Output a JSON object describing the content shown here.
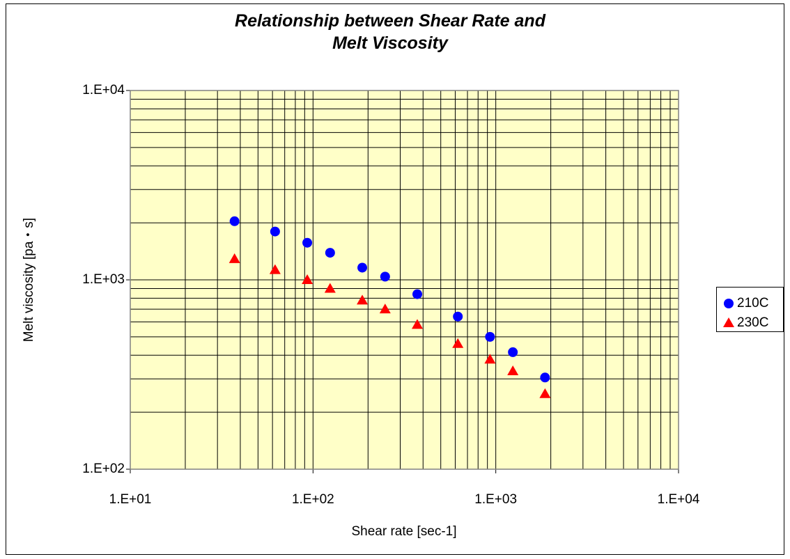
{
  "chart_data": {
    "type": "scatter",
    "title": "Relationship between Shear Rate and Melt Viscosity",
    "x_label": "Shear rate [sec-1]",
    "y_label": "Melt viscosity [pa・s]",
    "log_x": true,
    "log_y": true,
    "grid": true,
    "minor_grid": true,
    "legend": "right",
    "xlim": [
      10,
      10000
    ],
    "ylim": [
      100,
      10000
    ],
    "xticks": [
      {
        "value": 10,
        "label": "1.E+01"
      },
      {
        "value": 100,
        "label": "1.E+02"
      },
      {
        "value": 1000,
        "label": "1.E+03"
      },
      {
        "value": 10000,
        "label": "1.E+04"
      }
    ],
    "yticks": [
      {
        "value": 100,
        "label": "1.E+02"
      },
      {
        "value": 1000,
        "label": "1.E+03"
      },
      {
        "value": 10000,
        "label": "1.E+04"
      }
    ],
    "x": [
      37.2,
      62,
      93,
      124,
      186,
      248,
      372,
      620,
      930,
      1240,
      1860
    ],
    "series": [
      {
        "name": "210C",
        "color": "#0000ff",
        "marker": "circle",
        "values": [
          2040,
          1800,
          1570,
          1390,
          1160,
          1040,
          840,
          640,
          500,
          415,
          305
        ]
      },
      {
        "name": "230C",
        "color": "#ff0000",
        "marker": "triangle",
        "values": [
          1290,
          1130,
          1000,
          900,
          780,
          700,
          580,
          460,
          380,
          330,
          250
        ]
      }
    ]
  }
}
